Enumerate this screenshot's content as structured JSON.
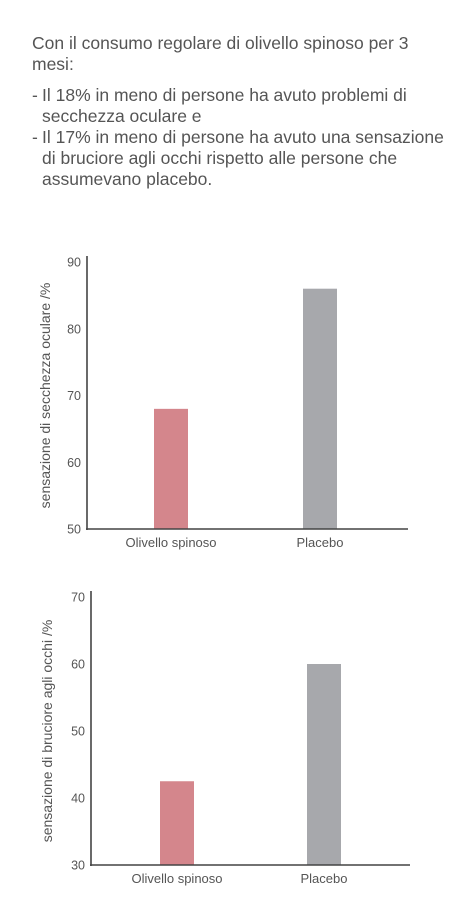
{
  "intro": {
    "lead": "Con il consumo regolare di olivello spinoso per 3 mesi:",
    "points": [
      "Il 18% in meno di persone ha avuto problemi di secchezza oculare e",
      "Il 17% in meno di persone ha avuto una sensazione di bruciore agli occhi rispetto alle persone che assumevano placebo."
    ]
  },
  "chart_data": [
    {
      "type": "bar",
      "categories": [
        "Olivello spinoso",
        "Placebo"
      ],
      "values": [
        68,
        86
      ],
      "ylabel": "sensazione di secchezza oculare /%",
      "ylim": [
        50,
        90
      ],
      "yticks": [
        50,
        60,
        70,
        80,
        90
      ],
      "colors": [
        "#d4868c",
        "#a7a8ac"
      ],
      "grid": false
    },
    {
      "type": "bar",
      "categories": [
        "Olivello spinoso",
        "Placebo"
      ],
      "values": [
        42.5,
        60
      ],
      "ylabel": "sensazione di bruciore agli occhi /%",
      "ylim": [
        30,
        70
      ],
      "yticks": [
        30,
        40,
        50,
        60,
        70
      ],
      "colors": [
        "#d4868c",
        "#a7a8ac"
      ],
      "grid": false
    }
  ]
}
